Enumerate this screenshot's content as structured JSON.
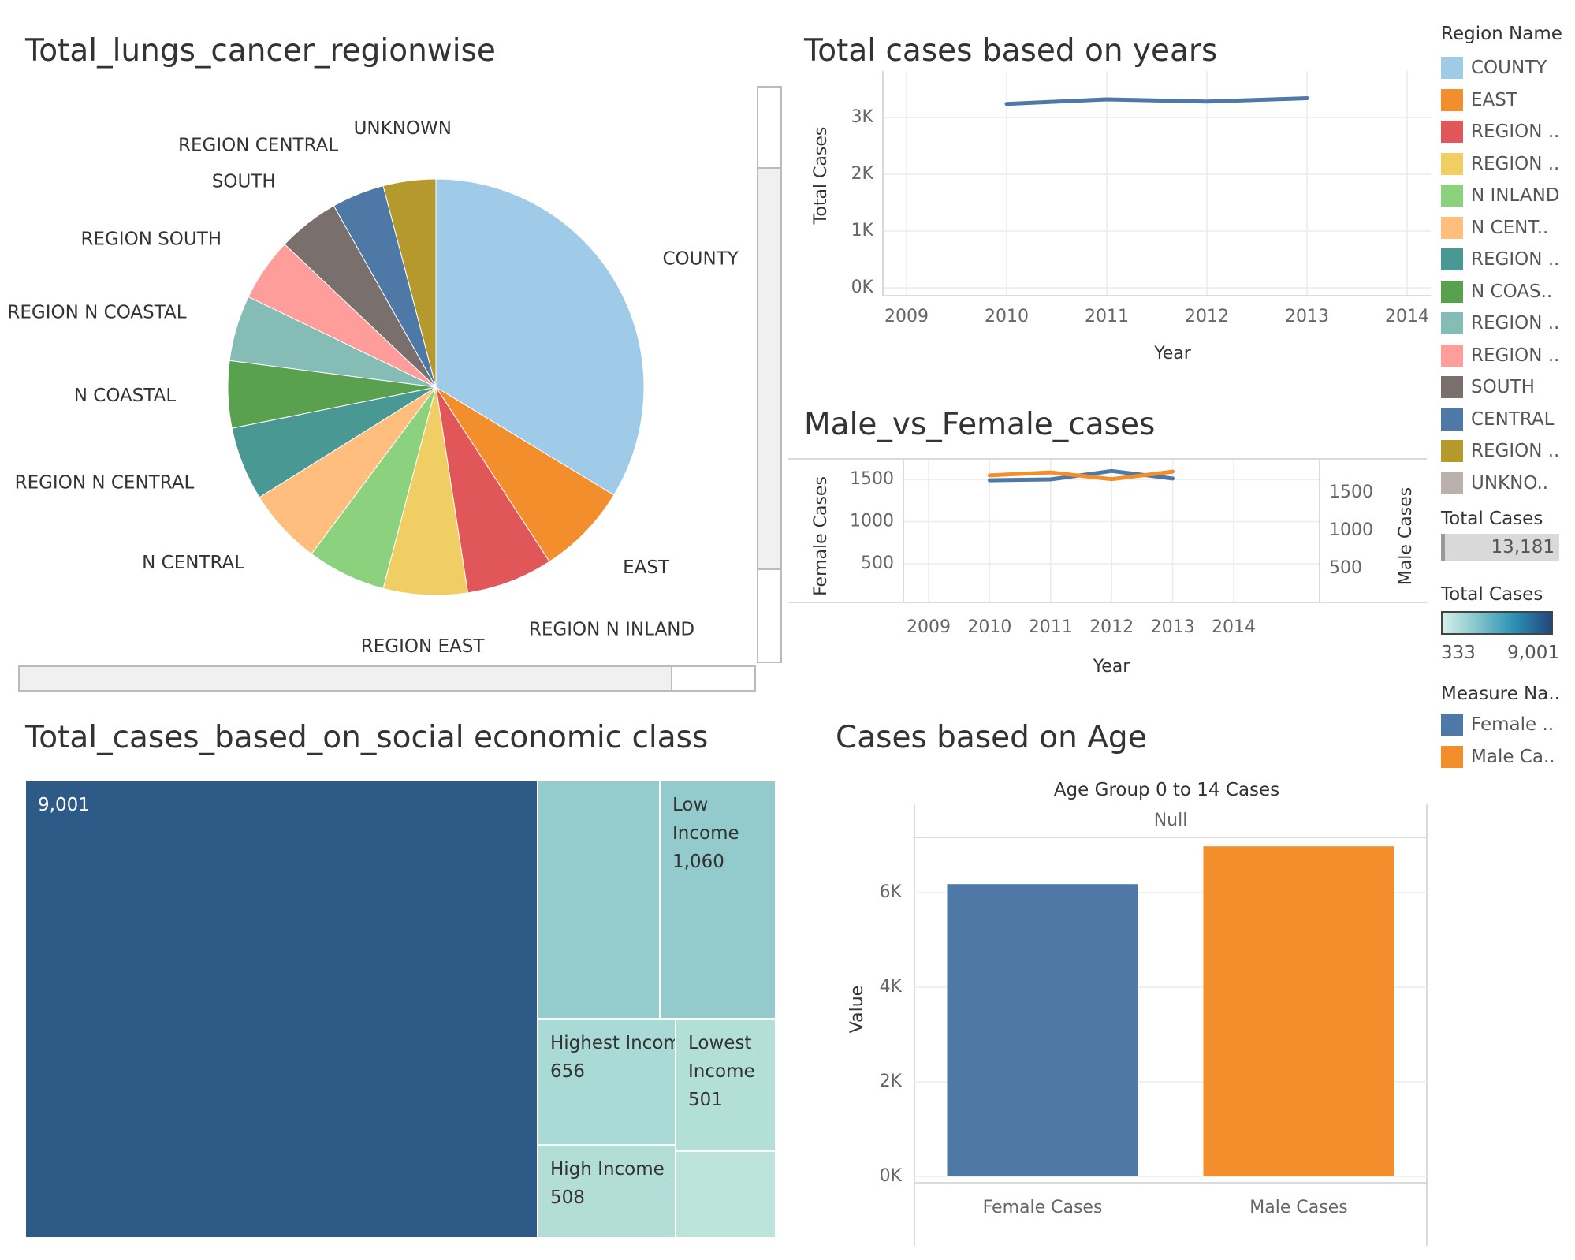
{
  "titles": {
    "pie": "Total_lungs_cancer_regionwise",
    "years": "Total cases based on years",
    "gender": "Male_vs_Female_cases",
    "treemap": "Total_cases_based_on_social economic class",
    "age": "Cases based on Age"
  },
  "legend": {
    "region_title": "Region Name",
    "regions": [
      {
        "label": "COUNTY",
        "color": "#A0CBE8"
      },
      {
        "label": "EAST",
        "color": "#F28E2B"
      },
      {
        "label": "REGION ..",
        "color": "#E15759"
      },
      {
        "label": "REGION ..",
        "color": "#F1CE63"
      },
      {
        "label": "N INLAND",
        "color": "#8CD17D"
      },
      {
        "label": "N CENT..",
        "color": "#FFBE7D"
      },
      {
        "label": "REGION ..",
        "color": "#499894"
      },
      {
        "label": "N COAS..",
        "color": "#59A14F"
      },
      {
        "label": "REGION ..",
        "color": "#86BCB6"
      },
      {
        "label": "REGION ..",
        "color": "#FF9D9A"
      },
      {
        "label": "SOUTH",
        "color": "#79706E"
      },
      {
        "label": "CENTRAL",
        "color": "#4E79A7"
      },
      {
        "label": "REGION ..",
        "color": "#B6992D"
      },
      {
        "label": "UNKNO..",
        "color": "#BAB0AC"
      }
    ],
    "total_cases_title": "Total Cases",
    "total_cases_value": "13,181",
    "color_scale_title": "Total Cases",
    "color_scale_min": "333",
    "color_scale_max": "9,001",
    "measure_title": "Measure Na..",
    "measures": [
      {
        "label": "Female ..",
        "color": "#4E79A7"
      },
      {
        "label": "Male Ca..",
        "color": "#F28E2B"
      }
    ]
  },
  "chart_data": [
    {
      "type": "pie",
      "title": "Total_lungs_cancer_regionwise",
      "slices": [
        {
          "label": "COUNTY",
          "value": 33.0,
          "color": "#A0CBE8"
        },
        {
          "label": "EAST",
          "value": 7.0,
          "color": "#F28E2B"
        },
        {
          "label": "REGION N INLAND",
          "value": 6.6,
          "color": "#E15759"
        },
        {
          "label": "REGION EAST",
          "value": 6.4,
          "color": "#F1CE63"
        },
        {
          "label": "",
          "value": 6.0,
          "color": "#8CD17D"
        },
        {
          "label": "N CENTRAL",
          "value": 5.8,
          "color": "#FFBE7D"
        },
        {
          "label": "REGION N CENTRAL",
          "value": 5.6,
          "color": "#499894"
        },
        {
          "label": "N COASTAL",
          "value": 5.1,
          "color": "#59A14F"
        },
        {
          "label": "REGION N COASTAL",
          "value": 5.0,
          "color": "#86BCB6"
        },
        {
          "label": "REGION SOUTH",
          "value": 4.8,
          "color": "#FF9D9A"
        },
        {
          "label": "SOUTH",
          "value": 4.7,
          "color": "#79706E"
        },
        {
          "label": "REGION CENTRAL",
          "value": 4.0,
          "color": "#4E79A7"
        },
        {
          "label": "UNKNOWN",
          "value": 4.0,
          "color": "#B6992D"
        }
      ]
    },
    {
      "type": "line",
      "title": "Total cases based on years",
      "xlabel": "Year",
      "ylabel": "Total Cases",
      "x_ticks": [
        "2009",
        "2010",
        "2011",
        "2012",
        "2013",
        "2014"
      ],
      "y_ticks": [
        "0K",
        "1K",
        "2K",
        "3K"
      ],
      "xlim": [
        2009,
        2014
      ],
      "ylim": [
        0,
        3000
      ],
      "series": [
        {
          "color": "#4E79A7",
          "x": [
            2010,
            2011,
            2012,
            2013
          ],
          "y": [
            3240,
            3320,
            3280,
            3340
          ]
        }
      ]
    },
    {
      "type": "line",
      "title": "Male_vs_Female_cases",
      "xlabel": "Year",
      "ylabel": "Female Cases",
      "ylabel_right": "Male Cases",
      "x_ticks": [
        "2009",
        "2010",
        "2011",
        "2012",
        "2013",
        "2014"
      ],
      "y_ticks_left": [
        "500",
        "1000",
        "1500"
      ],
      "y_ticks_right": [
        "500",
        "1000",
        "1500"
      ],
      "xlim": [
        2009,
        2014
      ],
      "series": [
        {
          "name": "Female Cases",
          "color": "#4E79A7",
          "axis": "left",
          "x": [
            2010,
            2011,
            2012,
            2013
          ],
          "y": [
            1490,
            1500,
            1600,
            1510
          ]
        },
        {
          "name": "Male Cases",
          "color": "#F28E2B",
          "axis": "right",
          "x": [
            2010,
            2011,
            2012,
            2013
          ],
          "y": [
            1730,
            1770,
            1680,
            1780
          ]
        }
      ]
    },
    {
      "type": "treemap",
      "title": "Total_cases_based_on_social economic class",
      "color_range": [
        333,
        9001
      ],
      "cells": [
        {
          "label": "",
          "value": 9001,
          "text": "9,001"
        },
        {
          "label": "",
          "value": 1022,
          "text": ""
        },
        {
          "label": "Low Income",
          "value": 1060,
          "text": "1,060"
        },
        {
          "label": "Highest Income",
          "value": 656,
          "text": "656"
        },
        {
          "label": "Lowest Income",
          "value": 501,
          "text": "501"
        },
        {
          "label": "High Income",
          "value": 508,
          "text": "508"
        },
        {
          "label": "",
          "value": 333,
          "text": ""
        }
      ]
    },
    {
      "type": "bar",
      "title": "Cases based on Age",
      "subtitle": "Age Group 0 to 14 Cases",
      "header": "Null",
      "categories": [
        "Female Cases",
        "Male Cases"
      ],
      "values": [
        6180,
        6980
      ],
      "colors": [
        "#4E79A7",
        "#F28E2B"
      ],
      "ylabel": "Value",
      "y_ticks": [
        "0K",
        "2K",
        "4K",
        "6K"
      ],
      "ylim": [
        0,
        7000
      ]
    }
  ]
}
